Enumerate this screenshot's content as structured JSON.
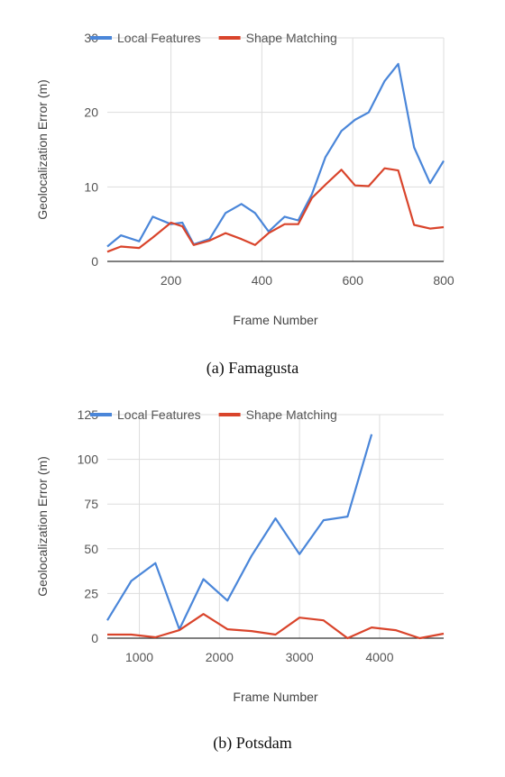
{
  "chart_data": [
    {
      "type": "line",
      "xlabel": "Frame Number",
      "ylabel": "Geolocalization Error (m)",
      "caption": "(a) Famagusta",
      "xlim": [
        60,
        800
      ],
      "ylim": [
        0,
        30
      ],
      "xticks": [
        200,
        400,
        600,
        800
      ],
      "yticks": [
        0,
        10,
        20,
        30
      ],
      "grid": true,
      "legend_position": "top",
      "series": [
        {
          "name": "Local Features",
          "color": "#4a86d9",
          "x": [
            60,
            90,
            130,
            160,
            200,
            225,
            250,
            285,
            320,
            355,
            385,
            415,
            450,
            480,
            510,
            540,
            575,
            605,
            635,
            670,
            700,
            735,
            770,
            800
          ],
          "y": [
            2,
            3.5,
            2.7,
            6,
            5,
            5.2,
            2.3,
            3,
            6.5,
            7.7,
            6.5,
            4,
            6,
            5.5,
            9,
            14,
            17.5,
            19,
            20,
            24.2,
            26.5,
            15.3,
            10.5,
            13.5
          ]
        },
        {
          "name": "Shape Matching",
          "color": "#d9442b",
          "x": [
            60,
            90,
            130,
            160,
            200,
            225,
            250,
            285,
            320,
            355,
            385,
            415,
            450,
            480,
            510,
            540,
            575,
            605,
            635,
            670,
            700,
            735,
            770,
            800
          ],
          "y": [
            1.3,
            2,
            1.8,
            3.2,
            5.2,
            4.7,
            2.2,
            2.8,
            3.8,
            3,
            2.2,
            3.8,
            5,
            5,
            8.5,
            10.3,
            12.3,
            10.2,
            10.1,
            12.5,
            12.2,
            4.9,
            4.4,
            4.6
          ]
        }
      ]
    },
    {
      "type": "line",
      "xlabel": "Frame Number",
      "ylabel": "Geolocalization Error (m)",
      "caption": "(b) Potsdam",
      "xlim": [
        600,
        4800
      ],
      "ylim": [
        0,
        125
      ],
      "xticks": [
        1000,
        2000,
        3000,
        4000
      ],
      "yticks": [
        0,
        25,
        50,
        75,
        100,
        125
      ],
      "grid": true,
      "legend_position": "top",
      "series": [
        {
          "name": "Local Features",
          "color": "#4a86d9",
          "x": [
            600,
            900,
            1200,
            1500,
            1800,
            2100,
            2400,
            2700,
            3000,
            3300,
            3600,
            3900
          ],
          "y": [
            10,
            32,
            42,
            5,
            33,
            21,
            46,
            67,
            47,
            66,
            68,
            114
          ]
        },
        {
          "name": "Shape Matching",
          "color": "#d9442b",
          "x": [
            600,
            900,
            1200,
            1500,
            1800,
            2100,
            2400,
            2700,
            3000,
            3300,
            3600,
            3900,
            4200,
            4500,
            4800
          ],
          "y": [
            2,
            2,
            0.5,
            4.5,
            13.5,
            5,
            4,
            2,
            11.5,
            10,
            0,
            6,
            4.5,
            0,
            2.5
          ]
        }
      ]
    }
  ]
}
